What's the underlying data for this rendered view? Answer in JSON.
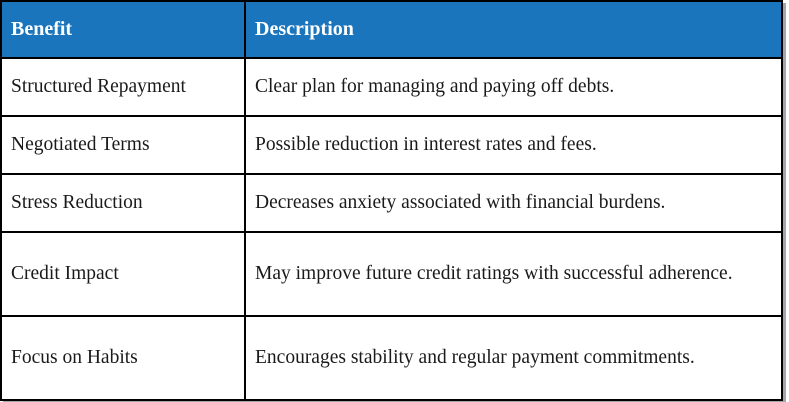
{
  "table": {
    "columns": [
      "Benefit",
      "Description"
    ],
    "rows": [
      {
        "benefit": "Structured Repayment",
        "description": "Clear plan for managing and paying off debts."
      },
      {
        "benefit": "Negotiated Terms",
        "description": "Possible reduction in interest rates and fees."
      },
      {
        "benefit": "Stress Reduction",
        "description": "Decreases anxiety associated with financial burdens."
      },
      {
        "benefit": "Credit Impact",
        "description": "May improve future credit ratings with successful adherence."
      },
      {
        "benefit": "Focus on Habits",
        "description": "Encourages stability and regular payment commitments."
      }
    ]
  },
  "colors": {
    "header_bg": "#1b75bc",
    "header_text": "#ffffff",
    "border": "#000000",
    "shadow": "#a6a6a6"
  }
}
